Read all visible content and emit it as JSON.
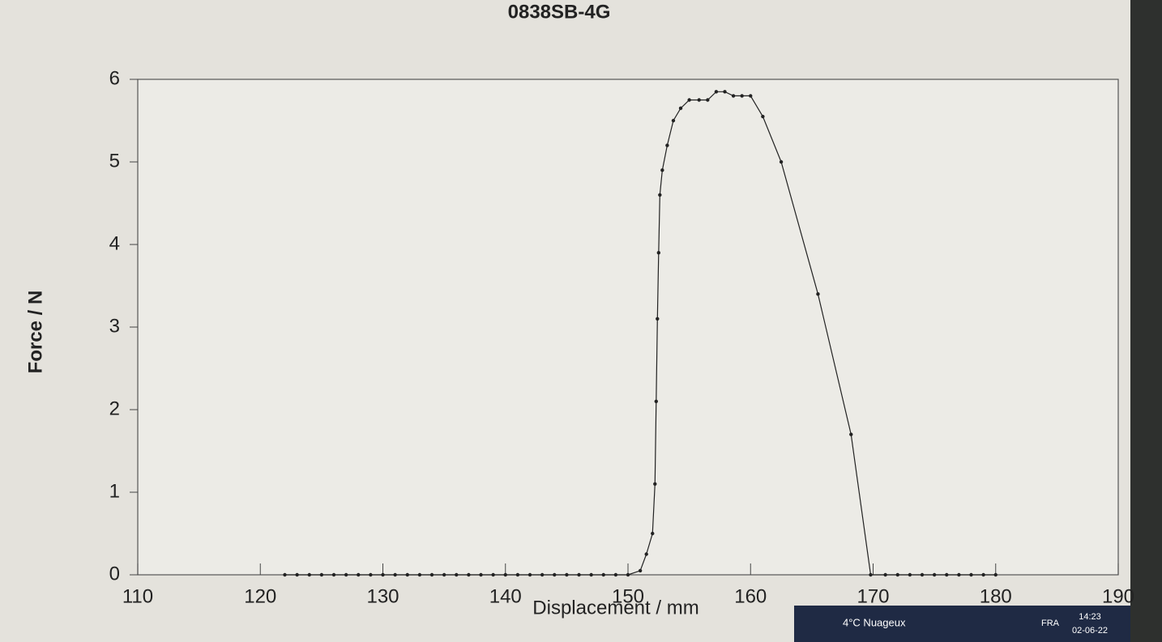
{
  "chart_data": {
    "type": "line",
    "title": "0838SB-4G",
    "x_label": "Displacement / mm",
    "y_label": "Force / N",
    "x": [
      122,
      123,
      124,
      125,
      126,
      127,
      128,
      129,
      130,
      131,
      132,
      133,
      134,
      135,
      136,
      137,
      138,
      139,
      140,
      141,
      142,
      143,
      144,
      145,
      146,
      147,
      148,
      149,
      150,
      151.0,
      151.5,
      152.0,
      152.2,
      152.3,
      152.4,
      152.5,
      152.6,
      152.8,
      153.2,
      153.7,
      154.3,
      155.0,
      155.8,
      156.5,
      157.2,
      157.9,
      158.6,
      159.3,
      160.0,
      161.0,
      162.5,
      165.5,
      168.2,
      169.8,
      171,
      172,
      173,
      174,
      175,
      176,
      177,
      178,
      179,
      180
    ],
    "values": [
      0,
      0,
      0,
      0,
      0,
      0,
      0,
      0,
      0,
      0,
      0,
      0,
      0,
      0,
      0,
      0,
      0,
      0,
      0,
      0,
      0,
      0,
      0,
      0,
      0,
      0,
      0,
      0,
      0,
      0.05,
      0.25,
      0.5,
      1.1,
      2.1,
      3.1,
      3.9,
      4.6,
      4.9,
      5.2,
      5.5,
      5.65,
      5.75,
      5.75,
      5.75,
      5.85,
      5.85,
      5.8,
      5.8,
      5.8,
      5.55,
      5.0,
      3.4,
      1.7,
      0,
      0,
      0,
      0,
      0,
      0,
      0,
      0,
      0,
      0,
      0
    ],
    "color": "#222222",
    "xlim": [
      110,
      190
    ],
    "xticks": [
      110,
      120,
      130,
      140,
      150,
      160,
      170,
      180,
      190
    ],
    "ylim": [
      0,
      6
    ],
    "yticks": [
      0,
      1,
      2,
      3,
      4,
      5,
      6
    ]
  },
  "taskbar": {
    "weather": "4°C Nuageux",
    "language": "FRA",
    "time": "14:23",
    "date": "02-06-22"
  }
}
